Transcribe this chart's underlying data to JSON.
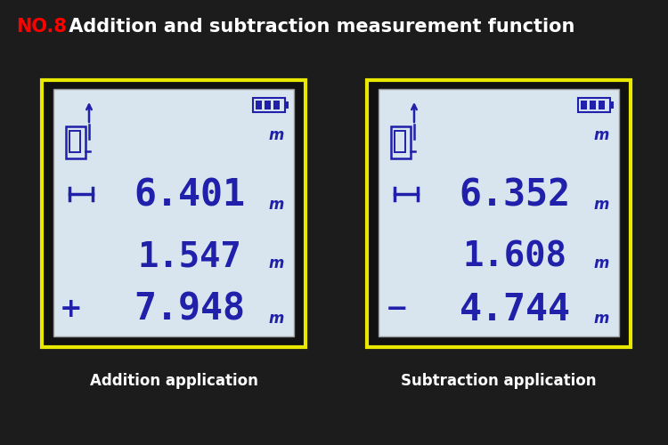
{
  "title_no": "NO.8",
  "title_rest": " Addition and subtraction measurement function",
  "title_no_color": "#ff0000",
  "title_rest_color": "#ffffff",
  "title_fontsize": 15,
  "bg_color": "#1c1c1c",
  "screen_bg": "#d8e4ee",
  "screen_border_color": "#e8e800",
  "lcd_color": "#2020aa",
  "left_screen": {
    "row1_value": "6.401",
    "row2_value": "1.547",
    "row3_value": "7.948",
    "row3_operator": "+",
    "caption": "Addition application"
  },
  "right_screen": {
    "row1_value": "6.352",
    "row2_value": "1.608",
    "row3_value": "4.744",
    "row3_operator": "−",
    "caption": "Subtraction application"
  },
  "caption_color": "#ffffff",
  "caption_fontsize": 12
}
